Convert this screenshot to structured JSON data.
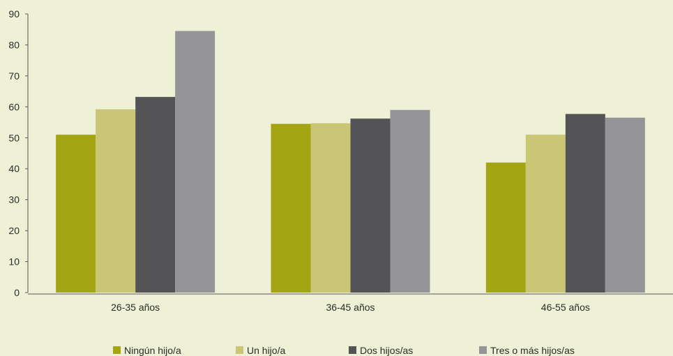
{
  "chart_data": {
    "type": "bar",
    "categories": [
      "26-35 años",
      "36-45 años",
      "46-55 años"
    ],
    "series": [
      {
        "name": "Ningún hijo/a",
        "color": "#a3a512",
        "values": [
          51,
          54.5,
          42
        ]
      },
      {
        "name": "Un hijo/a",
        "color": "#c9c775",
        "values": [
          59.2,
          54.7,
          51
        ]
      },
      {
        "name": "Dos hijos/as",
        "color": "#545456",
        "values": [
          63.2,
          56.2,
          57.7
        ]
      },
      {
        "name": "Tres o más hijos/as",
        "color": "#959597",
        "values": [
          84.5,
          59,
          56.5
        ]
      }
    ],
    "yticks": [
      "0",
      "10",
      "20",
      "30",
      "40",
      "50",
      "60",
      "70",
      "80",
      "90"
    ],
    "ylim": [
      0,
      90
    ],
    "title": "",
    "xlabel": "",
    "ylabel": "",
    "grid": false,
    "legend_position": "bottom"
  }
}
